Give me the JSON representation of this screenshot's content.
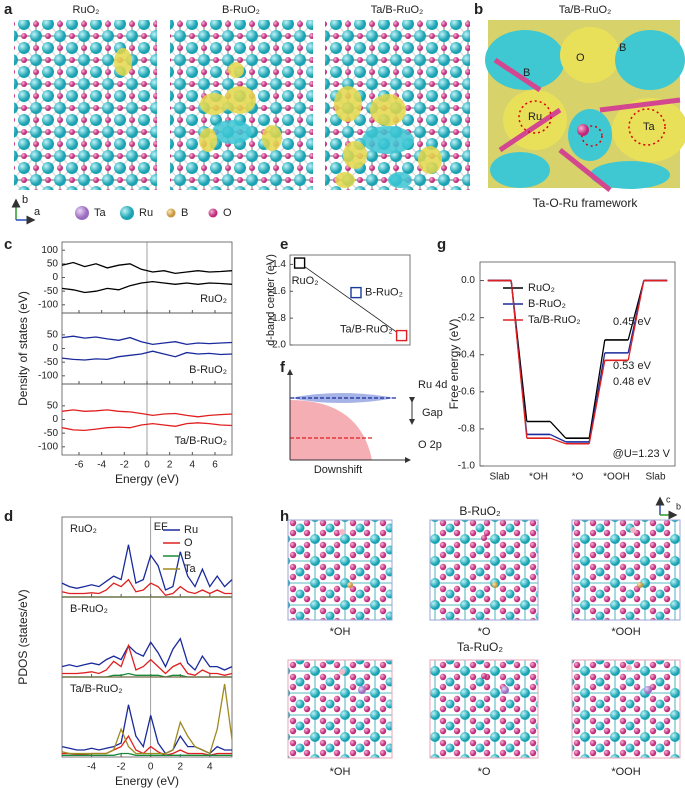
{
  "panel_labels": [
    "a",
    "b",
    "c",
    "d",
    "e",
    "f",
    "g",
    "h"
  ],
  "panel_a": {
    "titles": [
      "RuO₂",
      "B-RuO₂",
      "Ta/B-RuO₂"
    ],
    "legend": [
      "Ta",
      "Ru",
      "B",
      "O"
    ],
    "axes": [
      "b",
      "a"
    ]
  },
  "panel_b": {
    "title": "Ta/B-RuO₂",
    "caption": "Ta-O-Ru framework",
    "atom_labels": [
      "B",
      "O",
      "B",
      "Ru",
      "Ta"
    ]
  },
  "panel_f": {
    "top_label": "Ru 4d",
    "gap_label": "Gap",
    "bottom_label": "O 2p",
    "xlabel": "Downshift"
  },
  "panel_h": {
    "titles": [
      "B-RuO₂",
      "Ta-RuO₂"
    ],
    "captions": [
      "*OH",
      "*O",
      "*OOH",
      "*OH",
      "*O",
      "*OOH"
    ],
    "axes": [
      "c",
      "b"
    ]
  },
  "chart_data": [
    {
      "type": "line",
      "ylabel": "Density of states (eV)",
      "xlabel": "Energy (eV)",
      "xlim": [
        -7.5,
        7.5
      ],
      "xticks": [
        -6,
        -4,
        -2,
        0,
        2,
        4,
        6
      ],
      "x": [
        -7.5,
        -6.5,
        -5.5,
        -4.5,
        -3.5,
        -2.5,
        -1.5,
        -0.5,
        0.5,
        1.5,
        2.5,
        3.5,
        4.5,
        5.5,
        6.5,
        7.5
      ],
      "subplots": [
        {
          "label": "RuO₂",
          "color": "#000000",
          "ylim": [
            -130,
            130
          ],
          "yticks": [
            -100,
            -50,
            0,
            50,
            100
          ],
          "series": [
            {
              "values": [
                45,
                55,
                40,
                50,
                35,
                45,
                50,
                30,
                20,
                25,
                15,
                20,
                25,
                20,
                22,
                25
              ]
            },
            {
              "values": [
                -40,
                -45,
                -55,
                -50,
                -40,
                -45,
                -30,
                -20,
                -15,
                -20,
                -25,
                -20,
                -25,
                -20,
                -22,
                -25
              ]
            }
          ]
        },
        {
          "label": "B-RuO₂",
          "color": "#1a2a9c",
          "ylim": [
            -130,
            130
          ],
          "yticks": [
            -100,
            -50,
            0,
            50
          ],
          "series": [
            {
              "values": [
                40,
                45,
                38,
                42,
                35,
                30,
                40,
                25,
                15,
                20,
                25,
                15,
                20,
                18,
                20,
                22
              ]
            },
            {
              "values": [
                -35,
                -40,
                -42,
                -38,
                -40,
                -30,
                -25,
                -20,
                -10,
                -20,
                -30,
                -15,
                -20,
                -18,
                -22,
                -20
              ]
            }
          ]
        },
        {
          "label": "Ta/B-RuO₂",
          "color": "#e02020",
          "ylim": [
            -130,
            130
          ],
          "yticks": [
            -100,
            -50,
            0,
            50
          ],
          "series": [
            {
              "values": [
                30,
                35,
                30,
                32,
                35,
                30,
                28,
                22,
                15,
                20,
                22,
                15,
                10,
                15,
                18,
                20
              ]
            },
            {
              "values": [
                -30,
                -38,
                -40,
                -35,
                -30,
                -28,
                -30,
                -20,
                -15,
                -20,
                -25,
                -15,
                -12,
                -15,
                -20,
                -22
              ]
            }
          ]
        }
      ]
    },
    {
      "type": "line",
      "ylabel": "PDOS (states/eV)",
      "xlabel": "Energy (eV)",
      "annotation": "EF",
      "xlim": [
        -6,
        5.5
      ],
      "xticks": [
        -4,
        -2,
        0,
        2,
        4
      ],
      "ylim": [
        0,
        2.3
      ],
      "series": [
        {
          "name": "Ru",
          "color": "#1a2a9c"
        },
        {
          "name": "O",
          "color": "#e02020"
        },
        {
          "name": "B",
          "color": "#1a8a3a"
        },
        {
          "name": "Ta",
          "color": "#a08a20"
        }
      ],
      "x": [
        -6,
        -5.5,
        -5,
        -4.5,
        -4,
        -3.5,
        -3,
        -2.5,
        -2,
        -1.5,
        -1,
        -0.5,
        0,
        0.5,
        1,
        1.5,
        2,
        2.5,
        3,
        3.5,
        4,
        4.5,
        5,
        5.5
      ],
      "subplots": [
        {
          "label": "RuO₂",
          "values": [
            [
              0.4,
              0.3,
              0.25,
              0.3,
              0.35,
              0.3,
              0.45,
              0.6,
              0.5,
              1.5,
              0.4,
              0.5,
              1.2,
              0.9,
              0.2,
              0.3,
              1.3,
              0.6,
              0.3,
              0.8,
              0.3,
              0.6,
              0.3,
              0.5
            ],
            [
              0.15,
              0.1,
              0.1,
              0.1,
              0.12,
              0.1,
              0.2,
              0.4,
              0.3,
              0.5,
              0.15,
              0.2,
              0.4,
              0.3,
              0.05,
              0.1,
              0.3,
              0.15,
              0.1,
              0.2,
              0.1,
              0.2,
              0.1,
              0.1
            ],
            [
              0,
              0,
              0,
              0,
              0,
              0,
              0,
              0,
              0,
              0,
              0,
              0,
              0,
              0,
              0,
              0,
              0,
              0,
              0,
              0,
              0,
              0,
              0,
              0
            ],
            [
              0,
              0,
              0,
              0,
              0,
              0,
              0,
              0,
              0,
              0,
              0,
              0,
              0,
              0,
              0,
              0,
              0,
              0,
              0,
              0,
              0,
              0,
              0,
              0
            ]
          ]
        },
        {
          "label": "B-RuO₂",
          "values": [
            [
              0.3,
              0.35,
              0.3,
              0.35,
              0.4,
              0.35,
              0.5,
              0.6,
              0.5,
              0.9,
              0.7,
              0.6,
              1.0,
              0.7,
              0.3,
              0.8,
              1.1,
              0.4,
              0.2,
              0.6,
              0.3,
              0.3,
              0.2,
              0.3
            ],
            [
              0.1,
              0.1,
              0.1,
              0.12,
              0.15,
              0.1,
              0.2,
              0.45,
              0.3,
              0.9,
              0.2,
              0.3,
              0.5,
              0.3,
              0.1,
              0.3,
              0.4,
              0.1,
              0.05,
              0.2,
              0.1,
              0.1,
              0.05,
              0.1
            ],
            [
              0,
              0,
              0,
              0,
              0,
              0,
              0,
              0.05,
              0.05,
              0.1,
              0.05,
              0.05,
              0.05,
              0.05,
              0,
              0.05,
              0.05,
              0,
              0,
              0,
              0,
              0,
              0,
              0
            ],
            [
              0,
              0,
              0,
              0,
              0,
              0,
              0,
              0,
              0,
              0,
              0,
              0,
              0,
              0,
              0,
              0,
              0,
              0,
              0,
              0,
              0,
              0,
              0,
              0
            ]
          ]
        },
        {
          "label": "Ta/B-RuO₂",
          "values": [
            [
              0.3,
              0.25,
              0.2,
              0.2,
              0.25,
              0.2,
              0.25,
              0.3,
              0.4,
              1.5,
              0.6,
              0.3,
              1.2,
              0.4,
              0.1,
              0.2,
              0.6,
              0.3,
              0.3,
              0.2,
              0.1,
              0.3,
              0.2,
              0.2
            ],
            [
              0.1,
              0.1,
              0.08,
              0.08,
              0.1,
              0.1,
              0.1,
              0.2,
              0.3,
              0.6,
              0.2,
              0.1,
              0.3,
              0.15,
              0.05,
              0.1,
              0.2,
              0.1,
              0.1,
              0.1,
              0.05,
              0.1,
              0.1,
              0.1
            ],
            [
              0.05,
              0.05,
              0.05,
              0.05,
              0.05,
              0.05,
              0.05,
              0.05,
              0.1,
              0.1,
              0.05,
              0.05,
              0.05,
              0.05,
              0.05,
              0.05,
              0.05,
              0.05,
              0.05,
              0.05,
              0.05,
              0.05,
              0.05,
              0.05
            ],
            [
              0.15,
              0.1,
              0.1,
              0.1,
              0.1,
              0.1,
              0.1,
              0.2,
              0.8,
              0.3,
              0.1,
              0.1,
              0.1,
              0.1,
              0.1,
              0.2,
              1.0,
              0.6,
              0.3,
              0.2,
              0.1,
              0.8,
              2.1,
              0.5
            ]
          ]
        }
      ]
    },
    {
      "type": "scatter",
      "ylabel": "d-band center (eV)",
      "xlim": [
        0,
        1
      ],
      "ylim": [
        -2.0,
        -1.33
      ],
      "yticks": [
        -1.4,
        -1.6,
        -1.8,
        {
          "value": -2,
          "label": "-2.0"
        }
      ],
      "x": [
        0.08,
        0.55,
        0.93
      ],
      "values": [
        -1.39,
        -1.61,
        -1.93
      ],
      "point_labels": [
        "RuO₂",
        "B-RuO₂",
        "Ta/B-RuO₂"
      ],
      "colors": [
        "#000000",
        "#1a3a9c",
        "#e02020"
      ]
    },
    {
      "type": "step",
      "ylabel": "Free energy (eV)",
      "categories": [
        "Slab",
        "*OH",
        "*O",
        "*OOH",
        "Slab"
      ],
      "ylim": [
        -1.0,
        0.1
      ],
      "yticks": [
        {
          "value": 0,
          "label": "0.0"
        },
        -0.2,
        -0.4,
        -0.6,
        -0.8,
        {
          "value": -1,
          "label": "-1.0"
        }
      ],
      "series": [
        {
          "name": "RuO₂",
          "color": "#000000",
          "values": [
            0,
            -0.76,
            -0.85,
            -0.32,
            0
          ]
        },
        {
          "name": "B-RuO₂",
          "color": "#1a2a9c",
          "values": [
            0,
            -0.83,
            -0.87,
            -0.39,
            0
          ]
        },
        {
          "name": "Ta/B-RuO₂",
          "color": "#e02020",
          "values": [
            0,
            -0.85,
            -0.88,
            -0.43,
            0
          ]
        }
      ],
      "annotations": [
        {
          "text": "0.45 eV",
          "color": "#e02020"
        },
        {
          "text": "0.53 eV",
          "color": "#000000"
        },
        {
          "text": "0.48 eV",
          "color": "#1a2a9c"
        }
      ],
      "condition": "@U=1.23 V"
    }
  ]
}
